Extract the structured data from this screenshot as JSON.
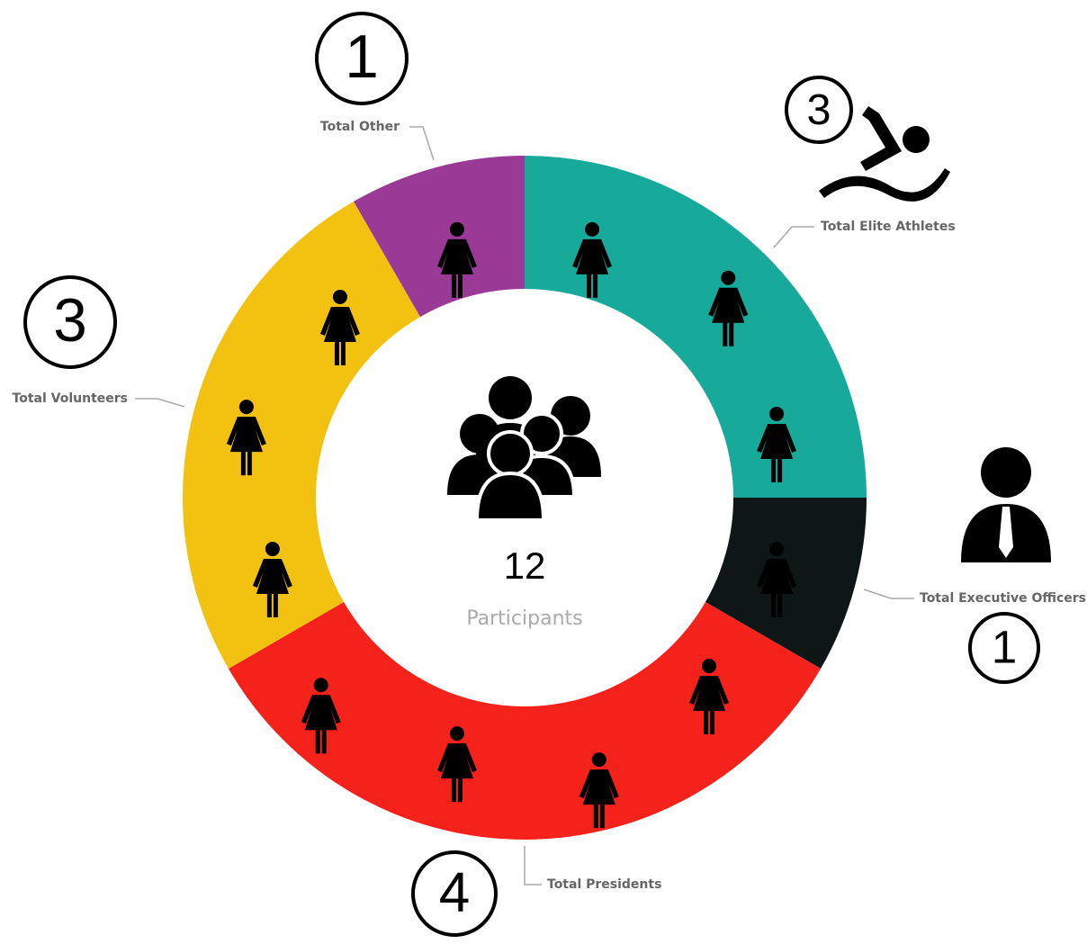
{
  "chart_data": {
    "type": "donut",
    "categories": [
      "Total Elite Athletes",
      "Total Executive Officers",
      "Total Presidents",
      "Total Volunteers",
      "Total Other"
    ],
    "values": [
      3,
      1,
      4,
      3,
      1
    ],
    "colors": [
      "#17a99a",
      "#0e1716",
      "#f5211b",
      "#f3c10f",
      "#9b3a96"
    ],
    "total": 12,
    "total_label": "Participants"
  }
}
